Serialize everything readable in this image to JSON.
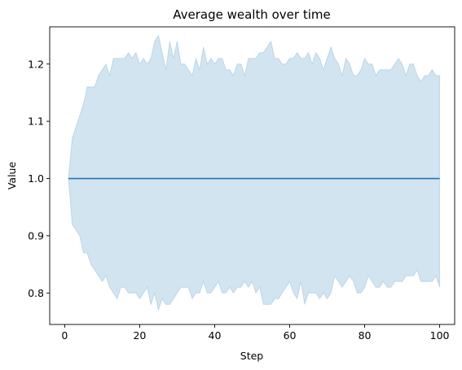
{
  "chart_data": {
    "type": "area",
    "title": "Average wealth over time",
    "xlabel": "Step",
    "ylabel": "Value",
    "xlim": [
      -4,
      104
    ],
    "ylim": [
      0.745,
      1.265
    ],
    "xticks": [
      0,
      20,
      40,
      60,
      80,
      100
    ],
    "yticks": [
      0.8,
      0.9,
      1.0,
      1.1,
      1.2
    ],
    "grid": false,
    "x": [
      1,
      2,
      3,
      4,
      5,
      6,
      7,
      8,
      9,
      10,
      11,
      12,
      13,
      14,
      15,
      16,
      17,
      18,
      19,
      20,
      21,
      22,
      23,
      24,
      25,
      26,
      27,
      28,
      29,
      30,
      31,
      32,
      33,
      34,
      35,
      36,
      37,
      38,
      39,
      40,
      41,
      42,
      43,
      44,
      45,
      46,
      47,
      48,
      49,
      50,
      51,
      52,
      53,
      54,
      55,
      56,
      57,
      58,
      59,
      60,
      61,
      62,
      63,
      64,
      65,
      66,
      67,
      68,
      69,
      70,
      71,
      72,
      73,
      74,
      75,
      76,
      77,
      78,
      79,
      80,
      81,
      82,
      83,
      84,
      85,
      86,
      87,
      88,
      89,
      90,
      91,
      92,
      93,
      94,
      95,
      96,
      97,
      98,
      99,
      100
    ],
    "series": [
      {
        "role": "mean",
        "color": "#1f77b4",
        "values": [
          1.0,
          1.0,
          1.0,
          1.0,
          1.0,
          1.0,
          1.0,
          1.0,
          1.0,
          1.0,
          1.0,
          1.0,
          1.0,
          1.0,
          1.0,
          1.0,
          1.0,
          1.0,
          1.0,
          1.0,
          1.0,
          1.0,
          1.0,
          1.0,
          1.0,
          1.0,
          1.0,
          1.0,
          1.0,
          1.0,
          1.0,
          1.0,
          1.0,
          1.0,
          1.0,
          1.0,
          1.0,
          1.0,
          1.0,
          1.0,
          1.0,
          1.0,
          1.0,
          1.0,
          1.0,
          1.0,
          1.0,
          1.0,
          1.0,
          1.0,
          1.0,
          1.0,
          1.0,
          1.0,
          1.0,
          1.0,
          1.0,
          1.0,
          1.0,
          1.0,
          1.0,
          1.0,
          1.0,
          1.0,
          1.0,
          1.0,
          1.0,
          1.0,
          1.0,
          1.0,
          1.0,
          1.0,
          1.0,
          1.0,
          1.0,
          1.0,
          1.0,
          1.0,
          1.0,
          1.0,
          1.0,
          1.0,
          1.0,
          1.0,
          1.0,
          1.0,
          1.0,
          1.0,
          1.0,
          1.0,
          1.0,
          1.0,
          1.0,
          1.0,
          1.0,
          1.0,
          1.0,
          1.0,
          1.0,
          1.0
        ]
      },
      {
        "role": "band-upper",
        "color": "#1f77b4",
        "values": [
          1.0,
          1.07,
          1.09,
          1.11,
          1.13,
          1.16,
          1.16,
          1.16,
          1.18,
          1.19,
          1.2,
          1.18,
          1.21,
          1.21,
          1.21,
          1.21,
          1.22,
          1.21,
          1.22,
          1.2,
          1.21,
          1.2,
          1.21,
          1.24,
          1.25,
          1.22,
          1.19,
          1.24,
          1.21,
          1.24,
          1.2,
          1.2,
          1.19,
          1.18,
          1.21,
          1.19,
          1.23,
          1.2,
          1.21,
          1.2,
          1.21,
          1.21,
          1.19,
          1.19,
          1.18,
          1.2,
          1.2,
          1.18,
          1.21,
          1.21,
          1.21,
          1.22,
          1.22,
          1.23,
          1.24,
          1.21,
          1.21,
          1.2,
          1.2,
          1.21,
          1.21,
          1.22,
          1.21,
          1.21,
          1.22,
          1.2,
          1.22,
          1.21,
          1.19,
          1.21,
          1.23,
          1.21,
          1.2,
          1.18,
          1.21,
          1.2,
          1.18,
          1.18,
          1.19,
          1.21,
          1.2,
          1.2,
          1.18,
          1.19,
          1.19,
          1.19,
          1.19,
          1.2,
          1.21,
          1.2,
          1.18,
          1.2,
          1.2,
          1.18,
          1.17,
          1.18,
          1.18,
          1.19,
          1.18,
          1.18
        ]
      },
      {
        "role": "band-lower",
        "color": "#1f77b4",
        "values": [
          1.0,
          0.92,
          0.91,
          0.9,
          0.87,
          0.87,
          0.85,
          0.84,
          0.83,
          0.82,
          0.83,
          0.81,
          0.8,
          0.79,
          0.81,
          0.81,
          0.8,
          0.8,
          0.8,
          0.79,
          0.8,
          0.81,
          0.78,
          0.8,
          0.77,
          0.79,
          0.78,
          0.78,
          0.79,
          0.8,
          0.81,
          0.81,
          0.81,
          0.79,
          0.8,
          0.8,
          0.82,
          0.8,
          0.8,
          0.81,
          0.82,
          0.8,
          0.8,
          0.81,
          0.8,
          0.81,
          0.81,
          0.82,
          0.81,
          0.82,
          0.8,
          0.81,
          0.78,
          0.78,
          0.78,
          0.79,
          0.79,
          0.8,
          0.81,
          0.82,
          0.8,
          0.79,
          0.82,
          0.78,
          0.8,
          0.8,
          0.8,
          0.79,
          0.8,
          0.79,
          0.8,
          0.83,
          0.82,
          0.81,
          0.82,
          0.83,
          0.82,
          0.8,
          0.8,
          0.81,
          0.83,
          0.82,
          0.81,
          0.81,
          0.82,
          0.81,
          0.81,
          0.82,
          0.82,
          0.82,
          0.83,
          0.83,
          0.83,
          0.84,
          0.82,
          0.82,
          0.82,
          0.82,
          0.83,
          0.81
        ]
      }
    ]
  }
}
